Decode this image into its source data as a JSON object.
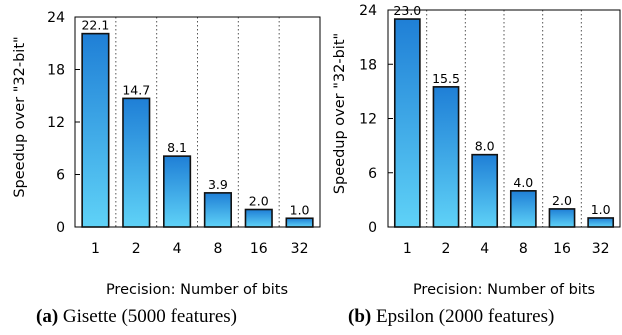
{
  "chart_data": [
    {
      "type": "bar",
      "categories": [
        "1",
        "2",
        "4",
        "8",
        "16",
        "32"
      ],
      "values": [
        22.1,
        14.7,
        8.1,
        3.9,
        2.0,
        1.0
      ],
      "value_labels": [
        "22.1",
        "14.7",
        "8.1",
        "3.9",
        "2.0",
        "1.0"
      ],
      "xlabel": "Precision: Number of bits",
      "ylabel": "Speedup over \"32-bit\"",
      "yticks": [
        "0",
        "6",
        "12",
        "18",
        "24"
      ],
      "ylim": [
        0,
        24
      ],
      "grid": "vertical dotted",
      "caption_letter": "(a)",
      "caption_text": "Gisette (5000 features)"
    },
    {
      "type": "bar",
      "categories": [
        "1",
        "2",
        "4",
        "8",
        "16",
        "32"
      ],
      "values": [
        23.0,
        15.5,
        8.0,
        4.0,
        2.0,
        1.0
      ],
      "value_labels": [
        "23.0",
        "15.5",
        "8.0",
        "4.0",
        "2.0",
        "1.0"
      ],
      "xlabel": "Precision: Number of bits",
      "ylabel": "Speedup over \"32-bit\"",
      "yticks": [
        "0",
        "6",
        "12",
        "18",
        "24"
      ],
      "ylim": [
        0,
        24
      ],
      "grid": "vertical dotted",
      "caption_letter": "(b)",
      "caption_text": "Epsilon (2000 features)"
    }
  ],
  "colors": {
    "bar_top": "#1f7fd6",
    "bar_bottom": "#5fd2f7",
    "bar_edge": "#111111",
    "grid": "#555555"
  }
}
